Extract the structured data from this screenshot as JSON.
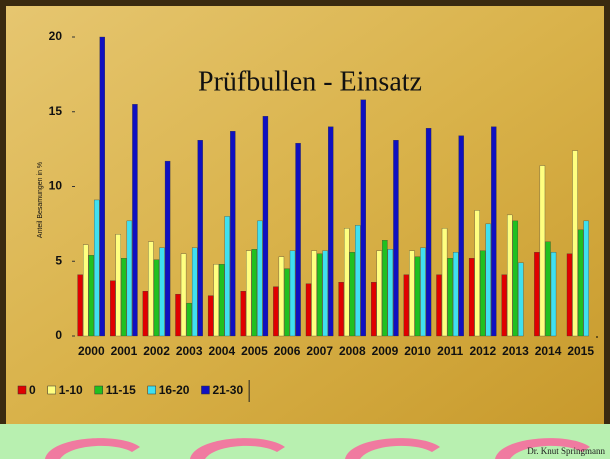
{
  "chart_data": {
    "type": "bar",
    "title": "Prüfbullen - Einsatz",
    "y_label": "Anteil Besamungen in %",
    "categories": [
      "2000",
      "2001",
      "2002",
      "2003",
      "2004",
      "2005",
      "2006",
      "2007",
      "2008",
      "2009",
      "2010",
      "2011",
      "2012",
      "2013",
      "2014",
      "2015"
    ],
    "series": [
      {
        "name": "0",
        "color": "#e00000",
        "values": [
          4.1,
          3.7,
          3.0,
          2.8,
          2.7,
          3.0,
          3.3,
          3.5,
          3.6,
          3.6,
          4.1,
          4.1,
          5.2,
          4.1,
          5.6,
          5.5
        ]
      },
      {
        "name": "1-10",
        "color": "#ffff80",
        "values": [
          6.1,
          6.8,
          6.3,
          5.5,
          4.8,
          5.7,
          5.3,
          5.7,
          7.2,
          5.7,
          5.7,
          7.2,
          8.4,
          8.1,
          11.4,
          12.4
        ]
      },
      {
        "name": "11-15",
        "color": "#20c020",
        "values": [
          5.4,
          5.2,
          5.1,
          2.2,
          4.8,
          5.8,
          4.5,
          5.5,
          5.6,
          6.4,
          5.3,
          5.2,
          5.7,
          7.7,
          6.3,
          7.1
        ]
      },
      {
        "name": "16-20",
        "color": "#40e0f0",
        "values": [
          9.1,
          7.7,
          5.9,
          5.9,
          8.0,
          7.7,
          5.7,
          5.7,
          7.4,
          5.8,
          5.9,
          5.6,
          7.5,
          4.9,
          5.6,
          7.7
        ]
      },
      {
        "name": "21-30",
        "color": "#1010c0",
        "values": [
          20,
          15.5,
          11.7,
          13.1,
          13.7,
          14.7,
          12.9,
          14.0,
          15.8,
          13.1,
          13.9,
          13.4,
          14.0,
          0,
          0,
          0
        ]
      }
    ],
    "ylim": [
      0,
      20
    ],
    "yticks": [
      0,
      5,
      10,
      15,
      20
    ],
    "grid": false
  },
  "credit": "Dr. Knut Springmann"
}
